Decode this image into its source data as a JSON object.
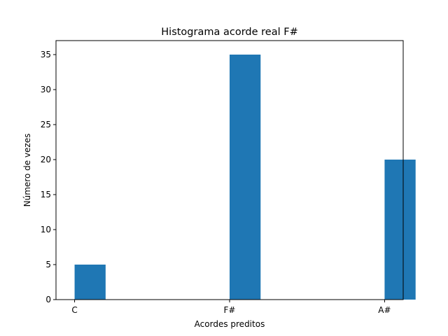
{
  "chart_data": {
    "type": "bar",
    "title": "Histograma acorde real F#",
    "xlabel": "Acordes preditos",
    "ylabel": "Número de vezes",
    "categories": [
      "C",
      "F#",
      "A#"
    ],
    "values": [
      5,
      35,
      20
    ],
    "ylim": [
      0,
      37
    ],
    "yticks": [
      0,
      5,
      10,
      15,
      20,
      25,
      30,
      35
    ],
    "bar_color": "#1f77b4",
    "grid": false,
    "legend": "none"
  }
}
